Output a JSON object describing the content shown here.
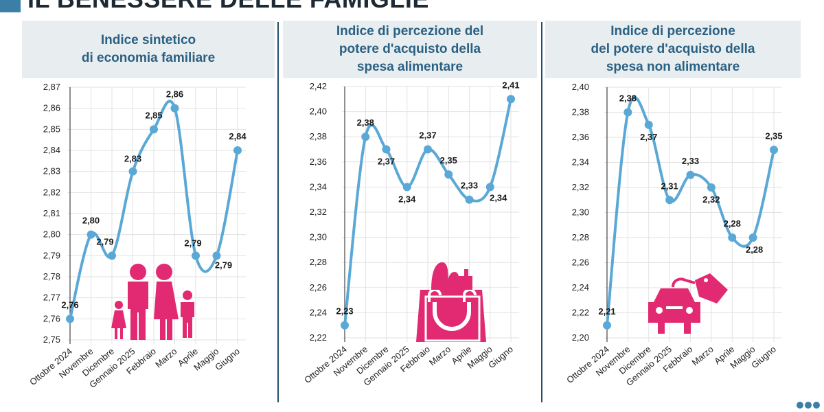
{
  "header": {
    "title": "IL BENESSERE DELLE FAMIGLIE"
  },
  "panels": [
    {
      "title": "Indice sintetico\ndi economia familiare",
      "icon": "family-icon"
    },
    {
      "title": "Indice di percezione del\npotere d'acquisto della\nspesa alimentare",
      "icon": "shopping-bag-icon"
    },
    {
      "title": "Indice di percezione\ndel potere d'acquisto della\nspesa non alimentare",
      "icon": "car-price-tag-icon"
    }
  ],
  "colors": {
    "line": "#5aa8d6",
    "dot": "#5aa8d6",
    "icon": "#e22a72",
    "accent": "#3b7fa6",
    "heading": "#2a6082",
    "header_bg": "#e8edf0"
  },
  "chart_data": [
    {
      "type": "line",
      "title": "Indice sintetico di economia familiare",
      "categories": [
        "Ottobre 2024",
        "Novembre",
        "Dicembre",
        "Gennaio 2025",
        "Febbraio",
        "Marzo",
        "Aprile",
        "Maggio",
        "Giugno"
      ],
      "values": [
        2.76,
        2.8,
        2.79,
        2.83,
        2.85,
        2.86,
        2.79,
        2.79,
        2.84
      ],
      "labels": [
        "2,76",
        "2,80",
        "2,79",
        "2,83",
        "2,85",
        "2,86",
        "2,79",
        "2,79",
        "2,84"
      ],
      "ylim": [
        2.75,
        2.87
      ],
      "yticks": [
        "2,75",
        "2,76",
        "2,77",
        "2,78",
        "2,79",
        "2,80",
        "2,81",
        "2,82",
        "2,83",
        "2,84",
        "2,85",
        "2,86",
        "2,87"
      ],
      "grid": true
    },
    {
      "type": "line",
      "title": "Indice di percezione del potere d'acquisto della spesa alimentare",
      "categories": [
        "Ottobre 2024",
        "Novembre",
        "Dicembre",
        "Gennaio 2025",
        "Febbraio",
        "Marzo",
        "Aprile",
        "Maggio",
        "Giugno"
      ],
      "values": [
        2.23,
        2.38,
        2.37,
        2.34,
        2.37,
        2.35,
        2.33,
        2.34,
        2.41
      ],
      "labels": [
        "2,23",
        "2,38",
        "2,37",
        "2,34",
        "2,37",
        "2,35",
        "2,33",
        "2,34",
        "2,41"
      ],
      "ylim": [
        2.22,
        2.42
      ],
      "yticks": [
        "2,22",
        "2,24",
        "2,26",
        "2,28",
        "2,30",
        "2,32",
        "2,34",
        "2,36",
        "2,38",
        "2,40",
        "2,42"
      ],
      "grid": true
    },
    {
      "type": "line",
      "title": "Indice di percezione del potere d'acquisto della spesa non alimentare",
      "categories": [
        "Ottobre 2024",
        "Novembre",
        "Dicembre",
        "Gennaio 2025",
        "Febbraio",
        "Marzo",
        "Aprile",
        "Maggio",
        "Giugno"
      ],
      "values": [
        2.21,
        2.38,
        2.37,
        2.31,
        2.33,
        2.32,
        2.28,
        2.28,
        2.35
      ],
      "labels": [
        "2,21",
        "2,38",
        "2,37",
        "2,31",
        "2,33",
        "2,32",
        "2,28",
        "2,28",
        "2,35"
      ],
      "ylim": [
        2.2,
        2.4
      ],
      "yticks": [
        "2,20",
        "2,22",
        "2,24",
        "2,26",
        "2,28",
        "2,30",
        "2,32",
        "2,34",
        "2,36",
        "2,38",
        "2,40"
      ],
      "grid": true
    }
  ]
}
